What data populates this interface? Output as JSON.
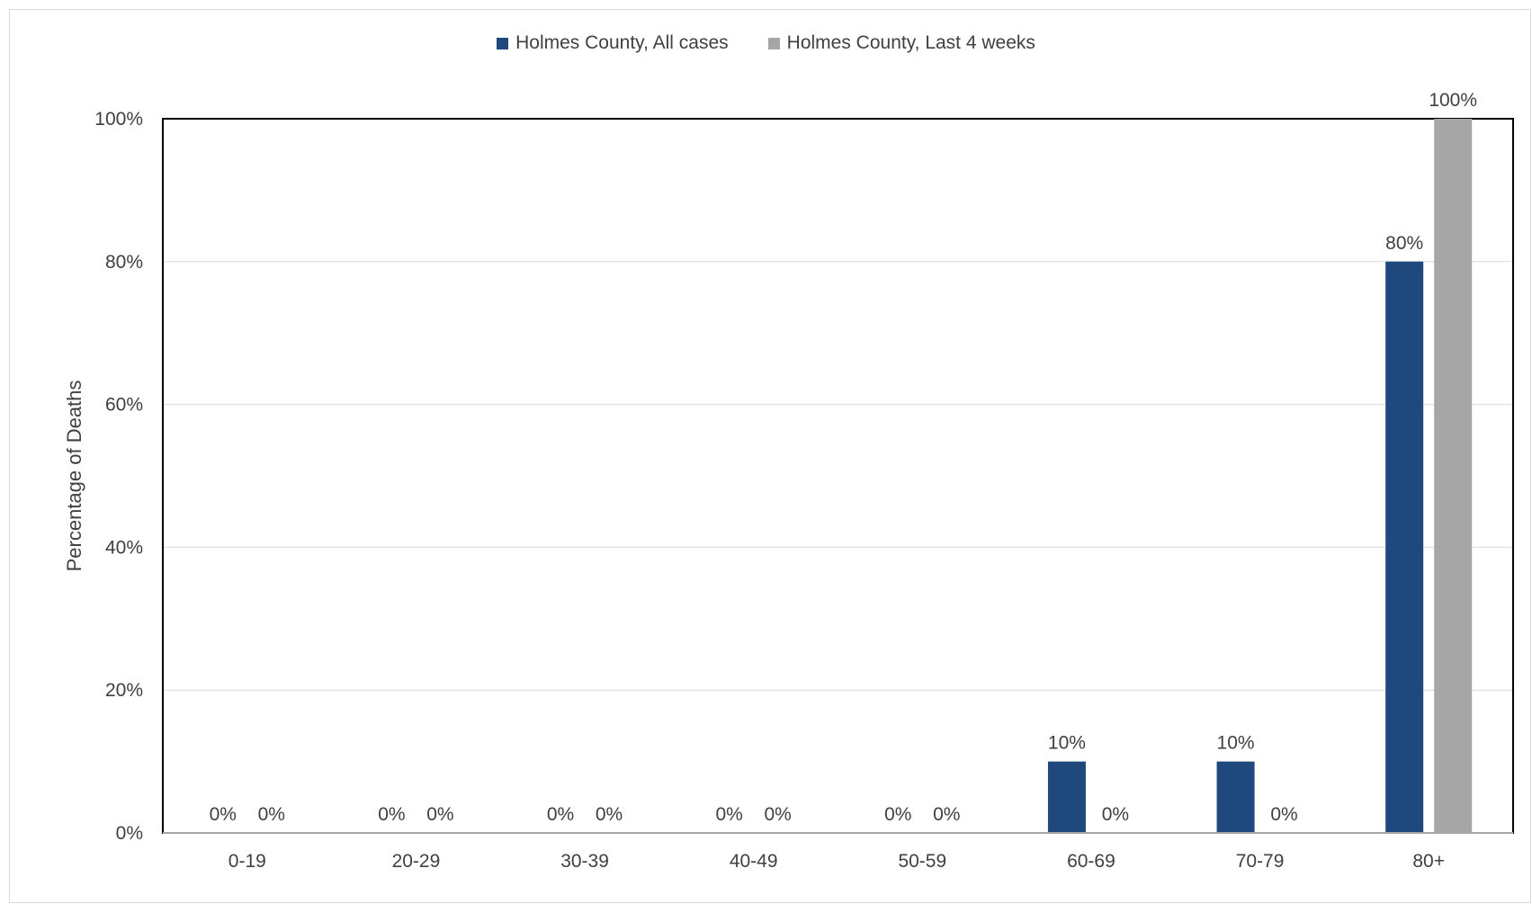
{
  "chart_data": {
    "type": "bar",
    "categories": [
      "0-19",
      "20-29",
      "30-39",
      "40-49",
      "50-59",
      "60-69",
      "70-79",
      "80+"
    ],
    "series": [
      {
        "name": "Holmes County, All cases",
        "values": [
          0,
          0,
          0,
          0,
          0,
          10,
          10,
          80
        ],
        "color": "#1f497d"
      },
      {
        "name": "Holmes County, Last 4 weeks",
        "values": [
          0,
          0,
          0,
          0,
          0,
          0,
          0,
          100
        ],
        "color": "#a6a6a6"
      }
    ],
    "data_labels": [
      [
        "0%",
        "0%",
        "0%",
        "0%",
        "0%",
        "10%",
        "10%",
        "80%"
      ],
      [
        "0%",
        "0%",
        "0%",
        "0%",
        "0%",
        "0%",
        "0%",
        "100%"
      ]
    ],
    "xlabel": "",
    "ylabel": "Percentage of Deaths",
    "ylim": [
      0,
      100
    ],
    "yticks": [
      0,
      20,
      40,
      60,
      80,
      100
    ],
    "ytick_labels": [
      "0%",
      "20%",
      "40%",
      "60%",
      "80%",
      "100%"
    ],
    "grid": true,
    "legend_position": "top-center"
  }
}
